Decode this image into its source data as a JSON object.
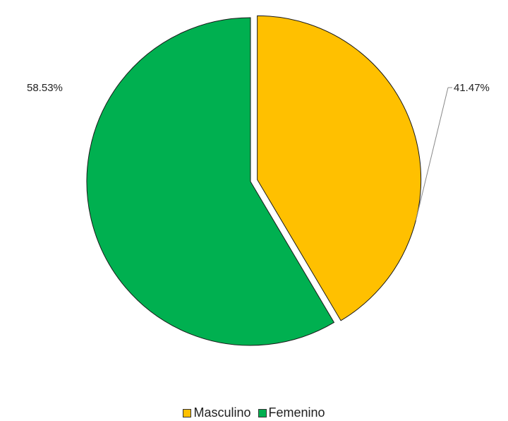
{
  "chart_data": {
    "type": "pie",
    "slices": [
      {
        "label": "Masculino",
        "value": 41.47,
        "value_label": "41.47%",
        "color": "#FFC000"
      },
      {
        "label": "Femenino",
        "value": 58.53,
        "value_label": "58.53%",
        "color": "#00B050"
      }
    ],
    "title": "",
    "legend": "bottom",
    "exploded_slice": "Masculino"
  }
}
